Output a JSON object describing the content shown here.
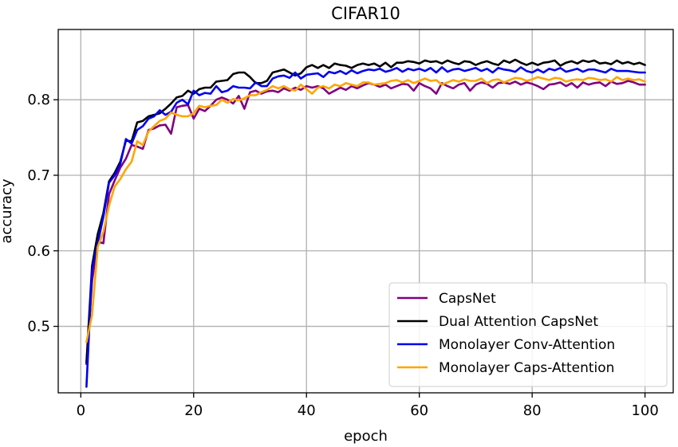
{
  "chart_data": {
    "type": "line",
    "title": "CIFAR10",
    "xlabel": "epoch",
    "ylabel": "accuracy",
    "xlim": [
      -4.0,
      105.0
    ],
    "ylim": [
      0.412,
      0.893
    ],
    "xticks": [
      0,
      20,
      40,
      60,
      80,
      100
    ],
    "yticks": [
      0.5,
      0.6,
      0.7,
      0.8
    ],
    "xtick_labels": [
      "0",
      "20",
      "40",
      "60",
      "80",
      "100"
    ],
    "ytick_labels": [
      "0.5",
      "0.6",
      "0.7",
      "0.8"
    ],
    "grid": true,
    "legend_position": "lower-right",
    "x": [
      1,
      2,
      3,
      4,
      5,
      6,
      7,
      8,
      9,
      10,
      11,
      12,
      13,
      14,
      15,
      16,
      17,
      18,
      19,
      20,
      21,
      22,
      23,
      24,
      25,
      26,
      27,
      28,
      29,
      30,
      31,
      32,
      33,
      34,
      35,
      36,
      37,
      38,
      39,
      40,
      41,
      42,
      43,
      44,
      45,
      46,
      47,
      48,
      49,
      50,
      51,
      52,
      53,
      54,
      55,
      56,
      57,
      58,
      59,
      60,
      61,
      62,
      63,
      64,
      65,
      66,
      67,
      68,
      69,
      70,
      71,
      72,
      73,
      74,
      75,
      76,
      77,
      78,
      79,
      80,
      81,
      82,
      83,
      84,
      85,
      86,
      87,
      88,
      89,
      90,
      91,
      92,
      93,
      94,
      95,
      96,
      97,
      98,
      99,
      100
    ],
    "series": [
      {
        "name": "CapsNet",
        "color": "#800080",
        "values": [
          0.45,
          0.56,
          0.612,
          0.61,
          0.675,
          0.693,
          0.71,
          0.722,
          0.74,
          0.738,
          0.735,
          0.76,
          0.762,
          0.766,
          0.767,
          0.755,
          0.79,
          0.792,
          0.793,
          0.775,
          0.788,
          0.785,
          0.792,
          0.8,
          0.803,
          0.8,
          0.795,
          0.805,
          0.788,
          0.81,
          0.812,
          0.808,
          0.811,
          0.812,
          0.81,
          0.815,
          0.812,
          0.816,
          0.813,
          0.818,
          0.816,
          0.818,
          0.815,
          0.808,
          0.812,
          0.816,
          0.813,
          0.818,
          0.815,
          0.819,
          0.822,
          0.82,
          0.817,
          0.82,
          0.815,
          0.818,
          0.821,
          0.82,
          0.812,
          0.822,
          0.818,
          0.815,
          0.808,
          0.822,
          0.818,
          0.815,
          0.82,
          0.822,
          0.812,
          0.82,
          0.823,
          0.821,
          0.816,
          0.822,
          0.823,
          0.821,
          0.824,
          0.82,
          0.823,
          0.821,
          0.818,
          0.814,
          0.82,
          0.821,
          0.823,
          0.818,
          0.822,
          0.816,
          0.823,
          0.82,
          0.822,
          0.823,
          0.818,
          0.824,
          0.821,
          0.822,
          0.825,
          0.823,
          0.82,
          0.82
        ]
      },
      {
        "name": "Dual Attention CapsNet",
        "color": "#000000",
        "values": [
          0.452,
          0.58,
          0.622,
          0.65,
          0.692,
          0.703,
          0.718,
          0.746,
          0.745,
          0.77,
          0.772,
          0.778,
          0.78,
          0.782,
          0.788,
          0.795,
          0.803,
          0.805,
          0.812,
          0.808,
          0.814,
          0.816,
          0.816,
          0.824,
          0.825,
          0.826,
          0.834,
          0.836,
          0.836,
          0.83,
          0.822,
          0.822,
          0.825,
          0.836,
          0.838,
          0.84,
          0.836,
          0.832,
          0.835,
          0.843,
          0.846,
          0.842,
          0.846,
          0.842,
          0.848,
          0.846,
          0.845,
          0.842,
          0.846,
          0.848,
          0.846,
          0.848,
          0.844,
          0.849,
          0.843,
          0.849,
          0.849,
          0.851,
          0.85,
          0.848,
          0.852,
          0.85,
          0.851,
          0.848,
          0.852,
          0.849,
          0.847,
          0.851,
          0.85,
          0.846,
          0.849,
          0.851,
          0.848,
          0.846,
          0.852,
          0.849,
          0.853,
          0.849,
          0.846,
          0.849,
          0.846,
          0.849,
          0.85,
          0.852,
          0.845,
          0.849,
          0.851,
          0.848,
          0.852,
          0.85,
          0.852,
          0.848,
          0.849,
          0.847,
          0.852,
          0.848,
          0.85,
          0.847,
          0.849,
          0.846
        ]
      },
      {
        "name": "Monolayer Conv-Attention",
        "color": "#0000ee",
        "values": [
          0.42,
          0.575,
          0.61,
          0.645,
          0.69,
          0.7,
          0.715,
          0.748,
          0.742,
          0.76,
          0.765,
          0.775,
          0.778,
          0.786,
          0.78,
          0.784,
          0.796,
          0.8,
          0.794,
          0.812,
          0.806,
          0.809,
          0.808,
          0.818,
          0.81,
          0.812,
          0.818,
          0.816,
          0.816,
          0.815,
          0.823,
          0.818,
          0.818,
          0.828,
          0.831,
          0.832,
          0.829,
          0.836,
          0.828,
          0.833,
          0.834,
          0.835,
          0.83,
          0.837,
          0.835,
          0.838,
          0.834,
          0.839,
          0.835,
          0.838,
          0.84,
          0.839,
          0.841,
          0.837,
          0.839,
          0.842,
          0.837,
          0.841,
          0.839,
          0.841,
          0.838,
          0.842,
          0.836,
          0.843,
          0.837,
          0.84,
          0.841,
          0.838,
          0.84,
          0.842,
          0.838,
          0.841,
          0.836,
          0.842,
          0.84,
          0.839,
          0.837,
          0.843,
          0.838,
          0.836,
          0.84,
          0.836,
          0.841,
          0.839,
          0.842,
          0.837,
          0.839,
          0.841,
          0.837,
          0.84,
          0.84,
          0.838,
          0.836,
          0.841,
          0.838,
          0.838,
          0.838,
          0.837,
          0.836,
          0.836
        ]
      },
      {
        "name": "Monolayer Caps-Attention",
        "color": "#ffa500",
        "values": [
          0.479,
          0.515,
          0.605,
          0.625,
          0.66,
          0.685,
          0.695,
          0.708,
          0.718,
          0.745,
          0.74,
          0.758,
          0.765,
          0.772,
          0.775,
          0.783,
          0.78,
          0.778,
          0.778,
          0.782,
          0.792,
          0.79,
          0.792,
          0.793,
          0.8,
          0.796,
          0.801,
          0.799,
          0.802,
          0.806,
          0.806,
          0.81,
          0.813,
          0.818,
          0.815,
          0.818,
          0.814,
          0.812,
          0.82,
          0.814,
          0.808,
          0.816,
          0.818,
          0.815,
          0.82,
          0.818,
          0.822,
          0.82,
          0.818,
          0.823,
          0.823,
          0.82,
          0.821,
          0.822,
          0.825,
          0.826,
          0.823,
          0.826,
          0.822,
          0.825,
          0.828,
          0.825,
          0.826,
          0.82,
          0.823,
          0.826,
          0.824,
          0.827,
          0.825,
          0.825,
          0.828,
          0.822,
          0.826,
          0.827,
          0.823,
          0.826,
          0.829,
          0.828,
          0.825,
          0.827,
          0.83,
          0.828,
          0.826,
          0.829,
          0.828,
          0.824,
          0.826,
          0.827,
          0.826,
          0.829,
          0.828,
          0.826,
          0.827,
          0.824,
          0.83,
          0.826,
          0.828,
          0.826,
          0.827,
          0.824
        ]
      }
    ]
  }
}
